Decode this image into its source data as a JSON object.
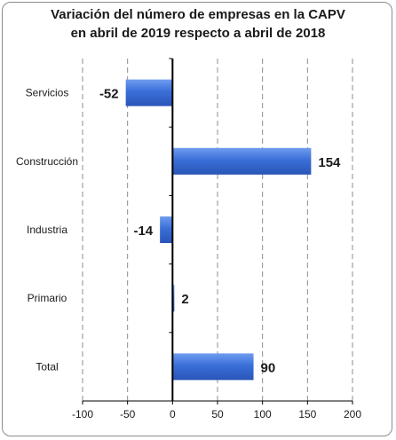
{
  "chart_data": {
    "type": "bar",
    "orientation": "horizontal",
    "title_lines": [
      "Variación del número de empresas en la CAPV",
      "en abril de 2019 respecto a abril de 2018"
    ],
    "categories": [
      "Servicios",
      "Construcción",
      "Industria",
      "Primario",
      "Total"
    ],
    "values": [
      -52,
      154,
      -14,
      2,
      90
    ],
    "data_labels": [
      "-52",
      "154",
      "-14",
      "2",
      "90"
    ],
    "xlim": [
      -100,
      200
    ],
    "x_ticks": [
      -100,
      -50,
      0,
      50,
      100,
      150,
      200
    ],
    "x_tick_labels": [
      "-100",
      "-50",
      "0",
      "50",
      "100",
      "150",
      "200"
    ],
    "grid": "vertical dashed",
    "bar_color": "#3a6fd8",
    "legend": "none"
  }
}
